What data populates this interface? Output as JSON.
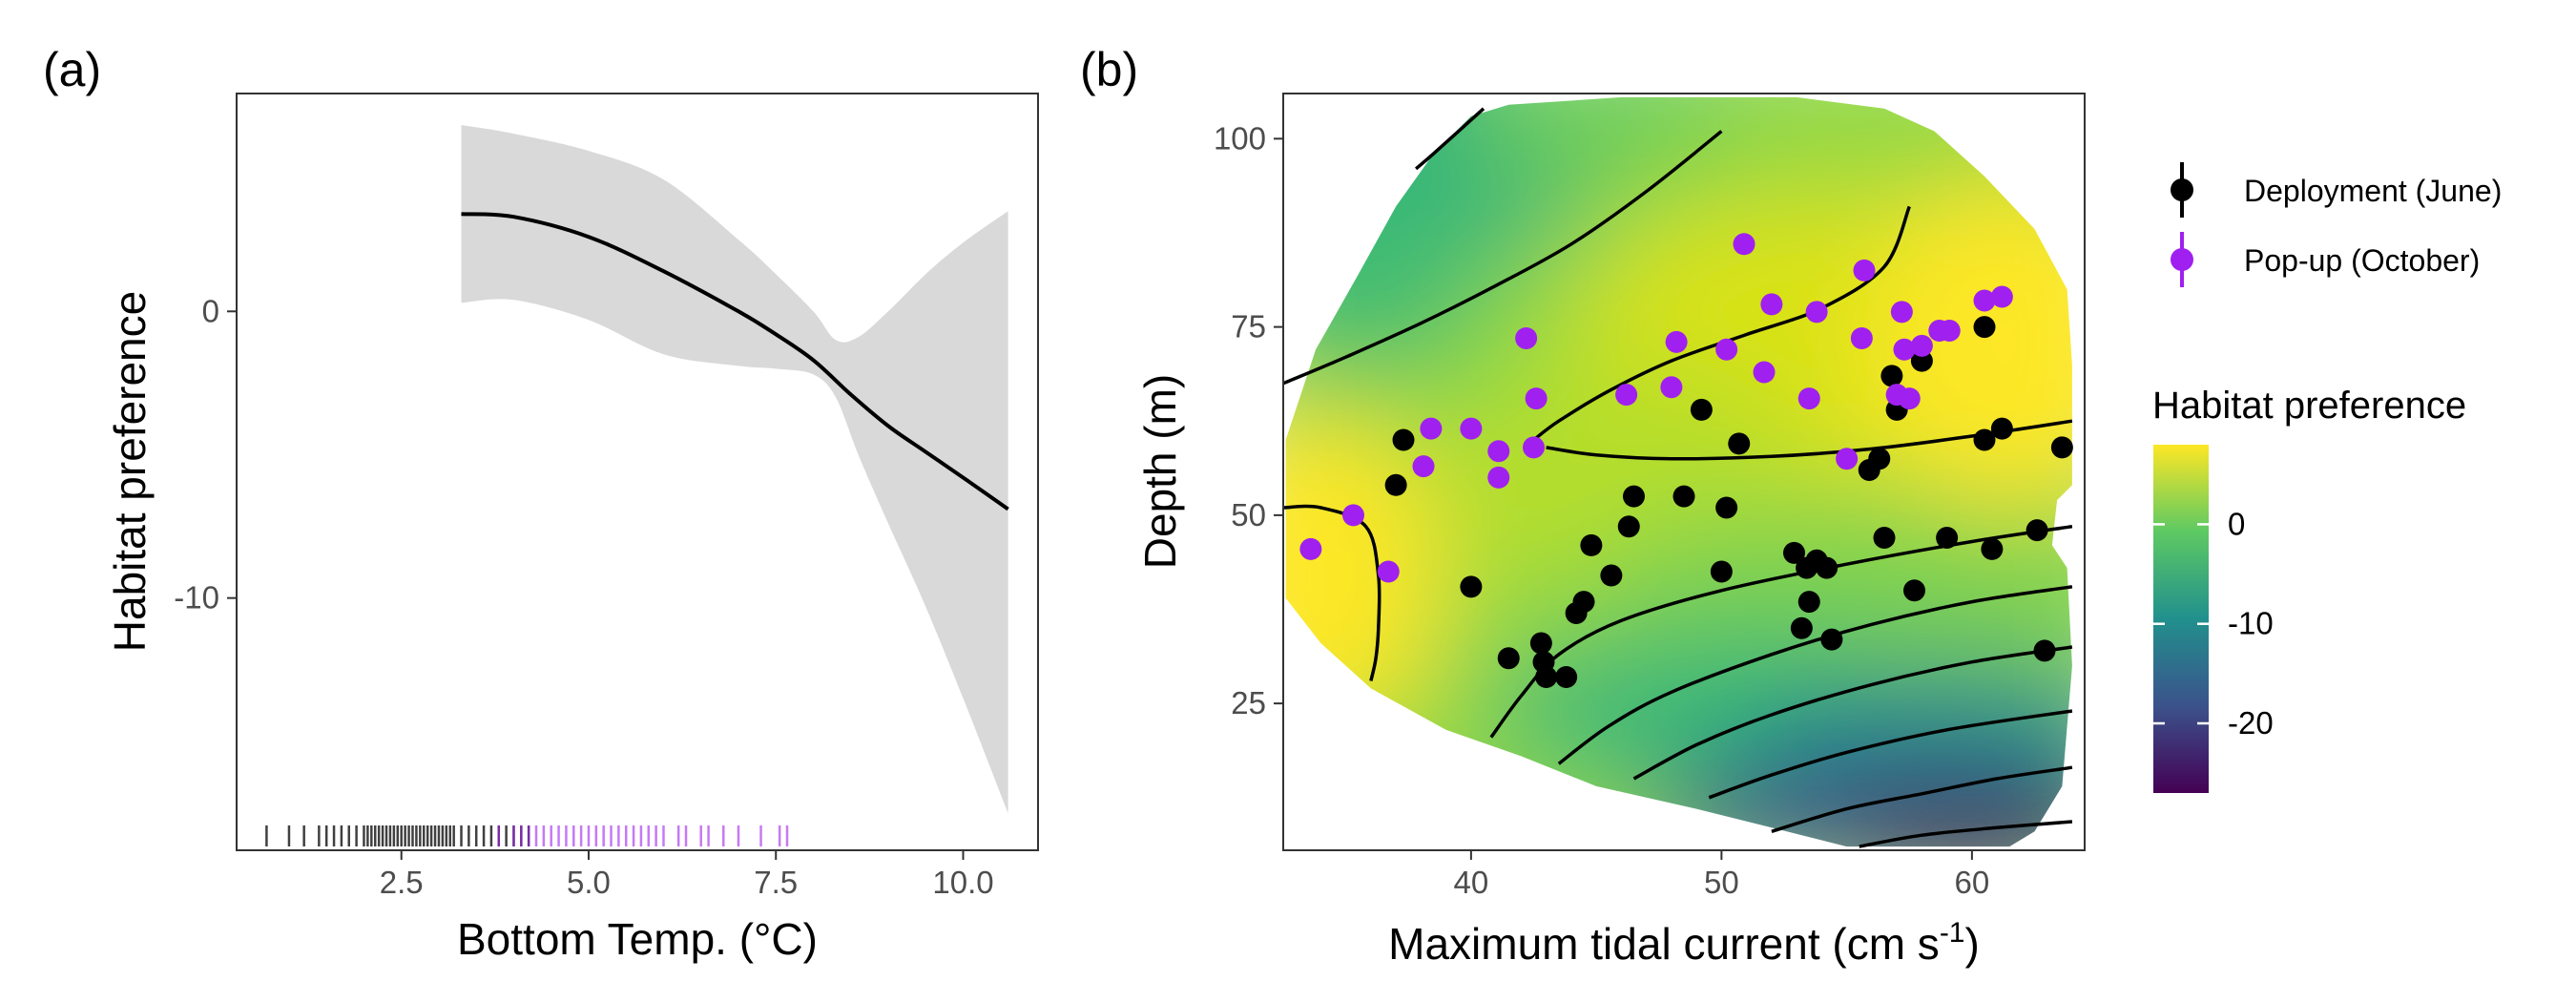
{
  "chart_data": [
    {
      "panel": "(a)",
      "type": "line",
      "xlabel": "Bottom Temp. (°C)",
      "ylabel": "Habitat preference",
      "xlim": [
        0.3,
        11.0
      ],
      "ylim": [
        -18.8,
        7.6
      ],
      "x_ticks": [
        {
          "value": 2.5,
          "label": "2.5"
        },
        {
          "value": 5.0,
          "label": "5.0"
        },
        {
          "value": 7.5,
          "label": "7.5"
        },
        {
          "value": 10.0,
          "label": "10.0"
        }
      ],
      "y_ticks": [
        {
          "value": 0,
          "label": "0"
        },
        {
          "value": -10,
          "label": "-10"
        }
      ],
      "grid": false,
      "fit": {
        "x": [
          3.3,
          4.0,
          5.0,
          6.0,
          7.0,
          7.5,
          8.0,
          8.5,
          9.0,
          9.5,
          10.0,
          10.6
        ],
        "y": [
          3.4,
          3.3,
          2.6,
          1.4,
          0.0,
          -0.8,
          -1.7,
          -2.9,
          -4.0,
          -4.9,
          -5.8,
          -6.9
        ]
      },
      "confidence_band": {
        "x": [
          3.3,
          4.0,
          5.0,
          6.0,
          7.0,
          7.5,
          8.0,
          8.3,
          8.6,
          9.0,
          9.5,
          10.0,
          10.6
        ],
        "upper": [
          6.5,
          6.2,
          5.6,
          4.6,
          2.5,
          1.3,
          0.0,
          -1.0,
          -0.9,
          0.0,
          1.3,
          2.4,
          3.5
        ],
        "lower": [
          0.3,
          0.4,
          -0.3,
          -1.5,
          -1.9,
          -2.0,
          -2.2,
          -3.0,
          -5.0,
          -7.4,
          -10.3,
          -13.5,
          -17.5
        ]
      },
      "rug": {
        "deployment_color": "#000000",
        "popup_color": "#a020f0",
        "deployment_x": [
          0.7,
          1.0,
          1.2,
          1.4,
          1.5,
          1.6,
          1.7,
          1.8,
          1.9,
          2.0,
          2.05,
          2.1,
          2.15,
          2.2,
          2.25,
          2.3,
          2.35,
          2.4,
          2.45,
          2.5,
          2.55,
          2.6,
          2.65,
          2.7,
          2.75,
          2.8,
          2.85,
          2.9,
          2.95,
          3.0,
          3.05,
          3.1,
          3.15,
          3.2,
          3.3,
          3.4,
          3.5,
          3.6,
          3.7,
          3.8,
          3.9,
          4.0,
          4.1,
          4.2
        ],
        "popup_x": [
          3.8,
          4.0,
          4.1,
          4.2,
          4.3,
          4.4,
          4.5,
          4.6,
          4.7,
          4.8,
          4.9,
          5.0,
          5.1,
          5.2,
          5.3,
          5.4,
          5.5,
          5.6,
          5.7,
          5.8,
          5.9,
          6.0,
          6.2,
          6.3,
          6.5,
          6.6,
          6.8,
          7.0,
          7.3,
          7.55,
          7.65
        ]
      }
    },
    {
      "panel": "(b)",
      "type": "heatmap",
      "xlabel": "Maximum tidal current (cm s",
      "xlabel_superscript": "-1",
      "xlabel_suffix": ")",
      "ylabel": "Depth (m)",
      "xlim": [
        32.5,
        64.5
      ],
      "ylim": [
        5.5,
        106
      ],
      "x_ticks": [
        {
          "value": 40,
          "label": "40"
        },
        {
          "value": 50,
          "label": "50"
        },
        {
          "value": 60,
          "label": "60"
        }
      ],
      "y_ticks": [
        {
          "value": 25,
          "label": "25"
        },
        {
          "value": 50,
          "label": "50"
        },
        {
          "value": 75,
          "label": "75"
        },
        {
          "value": 100,
          "label": "100"
        }
      ],
      "grid": false,
      "legend": {
        "placement": "right",
        "items": [
          {
            "label": "Deployment (June)",
            "color": "#000000"
          },
          {
            "label": "Pop-up (October)",
            "color": "#a020f0"
          }
        ]
      },
      "colorbar": {
        "title": "Habitat preference",
        "range": [
          -27,
          8
        ],
        "ticks": [
          {
            "value": 0,
            "label": "0"
          },
          {
            "value": -10,
            "label": "-10"
          },
          {
            "value": -20,
            "label": "-20"
          }
        ],
        "colors": [
          "#440154",
          "#3b528b",
          "#21908d",
          "#5dc963",
          "#fde725"
        ]
      },
      "deployment_points": [
        [
          37.0,
          54
        ],
        [
          37.3,
          60
        ],
        [
          40.0,
          40.5
        ],
        [
          41.5,
          31
        ],
        [
          42.8,
          33
        ],
        [
          42.9,
          30.5
        ],
        [
          43.0,
          28.5
        ],
        [
          43.8,
          28.5
        ],
        [
          44.2,
          37
        ],
        [
          44.5,
          38.5
        ],
        [
          44.8,
          46
        ],
        [
          45.6,
          42
        ],
        [
          46.3,
          48.5
        ],
        [
          46.5,
          52.5
        ],
        [
          48.5,
          52.5
        ],
        [
          49.2,
          64
        ],
        [
          50.0,
          42.5
        ],
        [
          50.2,
          51
        ],
        [
          50.7,
          59.5
        ],
        [
          52.9,
          45
        ],
        [
          53.2,
          35
        ],
        [
          53.4,
          43
        ],
        [
          53.5,
          38.5
        ],
        [
          53.8,
          44
        ],
        [
          54.2,
          43
        ],
        [
          54.4,
          33.5
        ],
        [
          55.9,
          56
        ],
        [
          56.3,
          57.5
        ],
        [
          56.5,
          47
        ],
        [
          56.8,
          68.5
        ],
        [
          57.0,
          64
        ],
        [
          57.7,
          40
        ],
        [
          58.0,
          70.5
        ],
        [
          59.0,
          47
        ],
        [
          60.5,
          60
        ],
        [
          60.5,
          75
        ],
        [
          60.8,
          45.5
        ],
        [
          61.2,
          61.5
        ],
        [
          62.6,
          48
        ],
        [
          62.9,
          32
        ],
        [
          63.6,
          59
        ]
      ],
      "popup_points": [
        [
          33.6,
          45.5
        ],
        [
          35.3,
          50
        ],
        [
          36.7,
          42.5
        ],
        [
          38.1,
          56.5
        ],
        [
          38.4,
          61.5
        ],
        [
          40.0,
          61.5
        ],
        [
          41.1,
          58.5
        ],
        [
          41.1,
          55
        ],
        [
          42.2,
          73.5
        ],
        [
          42.5,
          59
        ],
        [
          42.6,
          65.5
        ],
        [
          46.2,
          66
        ],
        [
          48.0,
          67
        ],
        [
          48.2,
          73
        ],
        [
          50.2,
          72
        ],
        [
          50.9,
          86
        ],
        [
          51.7,
          69
        ],
        [
          52.0,
          78
        ],
        [
          53.5,
          65.5
        ],
        [
          53.8,
          77
        ],
        [
          55.0,
          57.5
        ],
        [
          55.6,
          73.5
        ],
        [
          55.7,
          82.5
        ],
        [
          57.0,
          66
        ],
        [
          57.2,
          77
        ],
        [
          57.3,
          72
        ],
        [
          57.5,
          65.5
        ],
        [
          58.0,
          72.5
        ],
        [
          58.7,
          74.5
        ],
        [
          59.1,
          74.5
        ],
        [
          60.5,
          78.5
        ],
        [
          61.2,
          79
        ]
      ],
      "contours": [
        {
          "x": [
            37.8,
            38.5,
            39.5,
            40.5
          ],
          "y": [
            96,
            98,
            101,
            104
          ]
        },
        {
          "x": [
            32.5,
            35.0,
            38.0,
            41.0,
            44.0,
            47.0,
            50.0
          ],
          "y": [
            67.5,
            71,
            75.5,
            80.5,
            86,
            93,
            101
          ]
        },
        {
          "x": [
            42.5,
            43.5,
            45.5,
            48.0,
            51.0,
            54.0,
            56.5,
            57.5
          ],
          "y": [
            60,
            62.5,
            66.5,
            70.5,
            74,
            77.5,
            83,
            91
          ]
        },
        {
          "x": [
            32.5,
            34.0,
            35.8,
            36.3,
            36.3,
            36.2,
            36.0
          ],
          "y": [
            51,
            51,
            48.5,
            42,
            35,
            31,
            28
          ]
        },
        {
          "x": [
            43.0,
            45.0,
            48.0,
            52.0,
            56.0,
            60.0,
            64.0
          ],
          "y": [
            59,
            58,
            57.5,
            57.8,
            58.8,
            60.5,
            62.5
          ]
        },
        {
          "x": [
            40.8,
            42.0,
            43.5,
            46.0,
            50.0,
            55.0,
            60.0,
            64.0
          ],
          "y": [
            20.5,
            26,
            31.5,
            36,
            40,
            43.5,
            46.5,
            48.5
          ]
        },
        {
          "x": [
            43.5,
            45.5,
            48.0,
            52.0,
            56.0,
            60.0,
            64.0
          ],
          "y": [
            17,
            22,
            26.5,
            31.5,
            35.5,
            38.5,
            40.5
          ]
        },
        {
          "x": [
            46.5,
            49.0,
            52.0,
            56.0,
            60.0,
            64.0
          ],
          "y": [
            15,
            19.5,
            23.5,
            27.5,
            30.5,
            32.5
          ]
        },
        {
          "x": [
            49.5,
            52.0,
            55.0,
            59.0,
            64.0
          ],
          "y": [
            12.5,
            15.5,
            18.5,
            21.5,
            24
          ]
        },
        {
          "x": [
            52.0,
            55.0,
            58.0,
            61.0,
            64.0
          ],
          "y": [
            8,
            11,
            13,
            15,
            16.5
          ]
        },
        {
          "x": [
            55.5,
            58.0,
            61.0,
            64.0
          ],
          "y": [
            6,
            7.5,
            8.5,
            9.3
          ]
        }
      ]
    }
  ]
}
